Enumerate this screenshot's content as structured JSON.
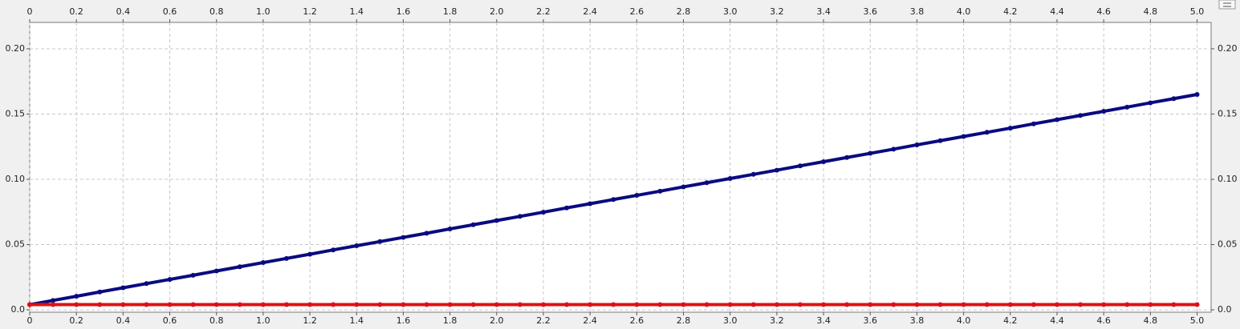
{
  "chart_data": {
    "type": "line",
    "x": [
      0,
      0.1,
      0.2,
      0.3,
      0.4,
      0.5,
      0.6,
      0.7,
      0.8,
      0.9,
      1,
      1.1,
      1.2,
      1.3,
      1.4,
      1.5,
      1.6,
      1.7,
      1.8,
      1.9,
      2,
      2.1,
      2.2,
      2.3,
      2.4,
      2.5,
      2.6,
      2.7,
      2.8,
      2.9,
      3,
      3.1,
      3.2,
      3.3,
      3.4,
      3.5,
      3.6,
      3.7,
      3.8,
      3.9,
      4,
      4.1,
      4.2,
      4.3,
      4.4,
      4.5,
      4.6,
      4.7,
      4.8,
      4.9,
      5
    ],
    "series": [
      {
        "color": "#0a0a80",
        "values": [
          0.004,
          0.0072,
          0.0104,
          0.0137,
          0.0169,
          0.0201,
          0.0233,
          0.0265,
          0.0298,
          0.033,
          0.0362,
          0.0394,
          0.0426,
          0.0459,
          0.0491,
          0.0523,
          0.0555,
          0.0587,
          0.062,
          0.0652,
          0.0684,
          0.0716,
          0.0748,
          0.0781,
          0.0813,
          0.0845,
          0.0877,
          0.0909,
          0.0942,
          0.0974,
          0.1006,
          0.1038,
          0.107,
          0.1103,
          0.1135,
          0.1167,
          0.1199,
          0.1231,
          0.1264,
          0.1296,
          0.1328,
          0.136,
          0.1392,
          0.1425,
          0.1457,
          0.1489,
          0.1521,
          0.1553,
          0.1586,
          0.1618,
          0.165
        ]
      },
      {
        "color": "#e01010",
        "values": [
          0.004,
          0.004,
          0.004,
          0.004,
          0.004,
          0.004,
          0.004,
          0.004,
          0.004,
          0.004,
          0.004,
          0.004,
          0.004,
          0.004,
          0.004,
          0.004,
          0.004,
          0.004,
          0.004,
          0.004,
          0.004,
          0.004,
          0.004,
          0.004,
          0.004,
          0.004,
          0.004,
          0.004,
          0.004,
          0.004,
          0.004,
          0.004,
          0.004,
          0.004,
          0.004,
          0.004,
          0.004,
          0.004,
          0.004,
          0.004,
          0.004,
          0.004,
          0.004,
          0.004,
          0.004,
          0.004,
          0.004,
          0.004,
          0.004,
          0.004,
          0.004
        ]
      }
    ],
    "xlim": [
      0,
      5.06
    ],
    "ylim": [
      -0.0018,
      0.2202
    ],
    "xticks": [
      0,
      0.2,
      0.4,
      0.6,
      0.8,
      {
        "value": 1,
        "label": "1.0"
      },
      1.2,
      1.4,
      1.6,
      1.8,
      {
        "value": 2,
        "label": "2.0"
      },
      2.2,
      2.4,
      2.6,
      2.8,
      {
        "value": 3,
        "label": "3.0"
      },
      3.2,
      3.4,
      3.6,
      3.8,
      {
        "value": 4,
        "label": "4.0"
      },
      4.2,
      4.4,
      4.6,
      4.8,
      {
        "value": 5,
        "label": "5.0"
      }
    ],
    "yticks": [
      {
        "value": 0,
        "label": "0.0"
      },
      0.05,
      {
        "value": 0.1,
        "label": "0.10"
      },
      0.15,
      {
        "value": 0.2,
        "label": "0.20"
      }
    ],
    "grid": true
  }
}
